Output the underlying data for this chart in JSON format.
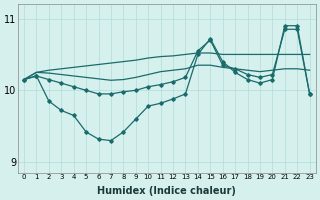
{
  "xlabel": "Humidex (Indice chaleur)",
  "background_color": "#d6f0ee",
  "grid_color": "#b0ddd8",
  "line_color": "#1a6b6b",
  "x": [
    0,
    1,
    2,
    3,
    4,
    5,
    6,
    7,
    8,
    9,
    10,
    11,
    12,
    13,
    14,
    15,
    16,
    17,
    18,
    19,
    20,
    21,
    22,
    23
  ],
  "series_upper": [
    10.15,
    10.25,
    10.28,
    10.3,
    10.32,
    10.34,
    10.36,
    10.38,
    10.4,
    10.42,
    10.45,
    10.47,
    10.48,
    10.5,
    10.52,
    10.52,
    10.5,
    10.5,
    10.5,
    10.5,
    10.5,
    10.5,
    10.5,
    10.5
  ],
  "series_mid_upper": [
    10.15,
    10.25,
    10.24,
    10.22,
    10.2,
    10.18,
    10.16,
    10.14,
    10.15,
    10.18,
    10.22,
    10.26,
    10.28,
    10.3,
    10.35,
    10.35,
    10.32,
    10.3,
    10.28,
    10.26,
    10.28,
    10.3,
    10.3,
    10.28
  ],
  "series_main": [
    10.15,
    10.2,
    10.15,
    10.1,
    10.05,
    10.0,
    9.95,
    9.95,
    9.98,
    10.0,
    10.05,
    10.08,
    10.12,
    10.18,
    10.55,
    10.7,
    10.35,
    10.3,
    10.22,
    10.18,
    10.22,
    10.85,
    10.85,
    9.95
  ],
  "series_dip": [
    10.15,
    10.2,
    9.85,
    9.72,
    9.65,
    9.42,
    9.32,
    9.3,
    9.42,
    9.6,
    9.78,
    9.82,
    9.88,
    9.95,
    10.5,
    10.72,
    10.4,
    10.25,
    10.15,
    10.1,
    10.15,
    10.9,
    10.9,
    9.95
  ],
  "ylim": [
    8.85,
    11.2
  ],
  "yticks": [
    9,
    10,
    11
  ],
  "xticks": [
    0,
    1,
    2,
    3,
    4,
    5,
    6,
    7,
    8,
    9,
    10,
    11,
    12,
    13,
    14,
    15,
    16,
    17,
    18,
    19,
    20,
    21,
    22,
    23
  ]
}
